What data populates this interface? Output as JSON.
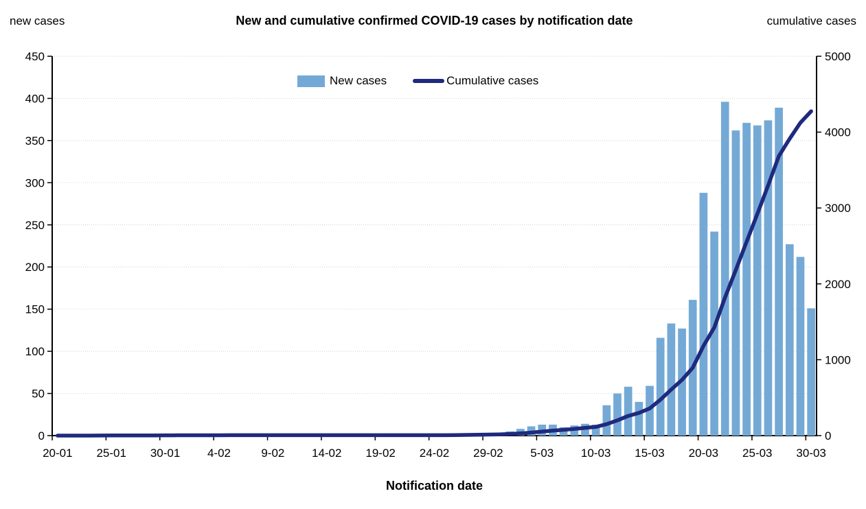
{
  "header": {
    "left_axis_caption": "new cases",
    "title": "New and cumulative confirmed COVID-19 cases by notification date",
    "right_axis_caption": "cumulative cases"
  },
  "legend": {
    "new_cases_label": "New cases",
    "cumulative_label": "Cumulative cases"
  },
  "x_axis_title": "Notification date",
  "colors": {
    "bar": "#74A9D6",
    "line": "#1F2A7D",
    "grid": "#D9D9D9",
    "axis": "#000000",
    "text": "#000000"
  },
  "chart_data": {
    "type": "bar",
    "title": "New and cumulative confirmed COVID-19 cases by notification date",
    "xlabel": "Notification date",
    "grid": "horizontal-dotted",
    "legend_position": "top-center",
    "left_axis": {
      "caption": "new cases",
      "min": 0,
      "max": 450,
      "tick_step": 50
    },
    "right_axis": {
      "caption": "cumulative cases",
      "min": 0,
      "max": 5000,
      "tick_step": 1000
    },
    "x_tick_labels": [
      "20-01",
      "25-01",
      "30-01",
      "4-02",
      "9-02",
      "14-02",
      "19-02",
      "24-02",
      "29-02",
      "5-03",
      "10-03",
      "15-03",
      "20-03",
      "25-03",
      "30-03"
    ],
    "x_tick_interval": 5,
    "dates": [
      "20-01",
      "21-01",
      "22-01",
      "23-01",
      "24-01",
      "25-01",
      "26-01",
      "27-01",
      "28-01",
      "29-01",
      "30-01",
      "31-01",
      "1-02",
      "2-02",
      "3-02",
      "4-02",
      "5-02",
      "6-02",
      "7-02",
      "8-02",
      "9-02",
      "10-02",
      "11-02",
      "12-02",
      "13-02",
      "14-02",
      "15-02",
      "16-02",
      "17-02",
      "18-02",
      "19-02",
      "20-02",
      "21-02",
      "22-02",
      "23-02",
      "24-02",
      "25-02",
      "26-02",
      "27-02",
      "28-02",
      "29-02",
      "1-03",
      "2-03",
      "3-03",
      "4-03",
      "5-03",
      "6-03",
      "7-03",
      "8-03",
      "9-03",
      "10-03",
      "11-03",
      "12-03",
      "13-03",
      "14-03",
      "15-03",
      "16-03",
      "17-03",
      "18-03",
      "19-03",
      "20-03",
      "21-03",
      "22-03",
      "23-03",
      "24-03",
      "25-03",
      "26-03",
      "27-03",
      "28-03",
      "29-03",
      "30-03"
    ],
    "series": [
      {
        "name": "New cases",
        "type": "bar",
        "axis": "left",
        "color": "#74A9D6",
        "values": [
          0,
          0,
          0,
          0,
          1,
          1,
          0,
          0,
          0,
          0,
          1,
          1,
          0,
          0,
          0,
          1,
          1,
          0,
          0,
          0,
          0,
          0,
          0,
          0,
          0,
          0,
          0,
          0,
          0,
          0,
          0,
          0,
          0,
          0,
          0,
          0,
          0,
          1,
          2,
          2,
          3,
          2,
          5,
          8,
          11,
          13,
          13,
          10,
          12,
          14,
          13,
          36,
          50,
          58,
          40,
          59,
          116,
          133,
          127,
          161,
          288,
          242,
          396,
          362,
          371,
          368,
          374,
          389,
          227,
          212,
          151
        ]
      },
      {
        "name": "Cumulative cases",
        "type": "line",
        "axis": "right",
        "color": "#1F2A7D",
        "values": [
          0,
          0,
          0,
          0,
          1,
          2,
          2,
          2,
          2,
          2,
          3,
          4,
          4,
          4,
          4,
          5,
          6,
          6,
          6,
          6,
          6,
          6,
          6,
          6,
          6,
          6,
          6,
          6,
          6,
          6,
          6,
          6,
          6,
          6,
          6,
          6,
          6,
          7,
          9,
          11,
          14,
          16,
          21,
          29,
          40,
          53,
          66,
          76,
          88,
          102,
          115,
          151,
          201,
          259,
          299,
          358,
          474,
          607,
          734,
          895,
          1183,
          1425,
          1821,
          2183,
          2554,
          2922,
          3296,
          3685,
          3912,
          4124,
          4275
        ]
      }
    ]
  }
}
